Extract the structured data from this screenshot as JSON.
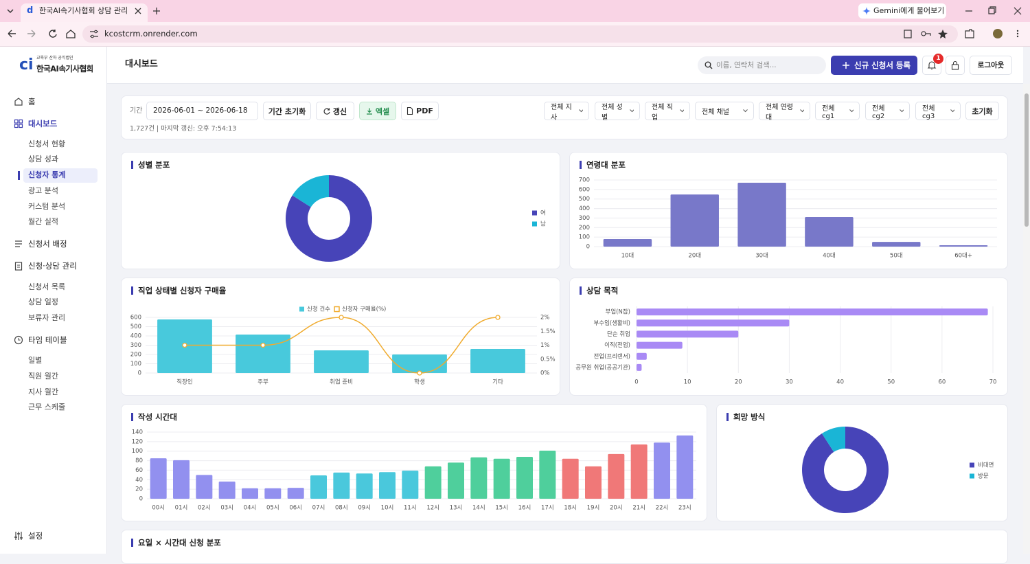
{
  "browser": {
    "tab_title": "한국AI속기사협회 상담 관리 시",
    "url": "kcostcrm.onrender.com",
    "gemini": "Gemini에게 물어보기"
  },
  "sidebar": {
    "logo_sub": "교육부 산하 공익법인",
    "logo_title": "한국AI속기사협회",
    "nav": [
      {
        "label": "홈"
      },
      {
        "label": "대시보드",
        "children": [
          "신청서 현황",
          "상담 성과",
          "신청자 통계",
          "광고 분석",
          "커스텀 분석",
          "월간 실적"
        ]
      },
      {
        "label": "신청서 배정"
      },
      {
        "label": "신청·상담 관리",
        "children": [
          "신청서 목록",
          "상담 일정",
          "보류자 관리"
        ]
      },
      {
        "label": "타임 테이블",
        "children": [
          "일별",
          "직원 월간",
          "지사 월간",
          "근무 스케줄"
        ]
      }
    ],
    "settings": "설정"
  },
  "header": {
    "title": "대시보드",
    "search_placeholder": "이름, 연락처 검색...",
    "register": "신규 신청서 등록",
    "notifications": "1",
    "logout": "로그아웃"
  },
  "filters": {
    "period_label": "기간",
    "period": "2026-06-01 ~ 2026-06-18",
    "reset_period": "기간 초기화",
    "refresh": "갱신",
    "excel": "엑셀",
    "pdf": "PDF",
    "dropdowns": [
      "전체 지사",
      "전체 성별",
      "전체 직업",
      "전체 채널",
      "전체 연령대",
      "전체 cg1",
      "전체 cg2",
      "전체 cg3"
    ],
    "reset": "초기화",
    "summary": "1,727건 | 마지막 갱신: 오후 7:54:13"
  },
  "chart_data": [
    {
      "type": "pie",
      "title": "성별 분포",
      "donut": true,
      "categories": [
        "여",
        "남"
      ],
      "values": [
        1450,
        277
      ],
      "colors": [
        "#4744b8",
        "#1ab5d6"
      ],
      "legend": "right"
    },
    {
      "type": "bar",
      "title": "연령대 분포",
      "categories": [
        "10대",
        "20대",
        "30대",
        "40대",
        "50대",
        "60대+"
      ],
      "values": [
        79,
        548,
        671,
        310,
        50,
        14
      ],
      "color": "#7878c9",
      "ylim": [
        0,
        700
      ],
      "yticks": [
        0,
        100,
        200,
        300,
        400,
        500,
        600,
        700
      ],
      "grid": true
    },
    {
      "type": "combo",
      "title": "직업 상태별 신청자 구매율",
      "categories": [
        "직장인",
        "주부",
        "취업 준비",
        "학생",
        "기타"
      ],
      "series": [
        {
          "name": "신청 건수",
          "type": "bar",
          "color": "#48c9dc",
          "values": [
            578,
            415,
            244,
            200,
            259
          ]
        },
        {
          "name": "신청자 구매율(%)",
          "type": "line",
          "axis": "y2",
          "color": "#f0ab2e",
          "values": [
            1,
            1,
            2,
            0,
            2
          ]
        }
      ],
      "ylim": [
        0,
        600
      ],
      "yticks": [
        0,
        100,
        200,
        300,
        400,
        500,
        600
      ],
      "y2lim": [
        0,
        2
      ],
      "y2ticks": [
        {
          "value": 0,
          "label": "0%"
        },
        {
          "value": 0.5,
          "label": "0.5%"
        },
        {
          "value": 1,
          "label": "1%"
        },
        {
          "value": 1.5,
          "label": "1.5%"
        },
        {
          "value": 2,
          "label": "2%"
        }
      ],
      "grid": true,
      "legend": "top"
    },
    {
      "type": "bar",
      "orientation": "horizontal",
      "title": "상담 목적",
      "categories": [
        "부업(N잡)",
        "부수입(생활비)",
        "단순 취업",
        "이직(전업)",
        "전업(프리랜서)",
        "공무원 취업(공공기관)"
      ],
      "values": [
        69,
        30,
        20,
        9,
        2,
        1
      ],
      "color": "#a98af5",
      "xlim": [
        0,
        70
      ],
      "xticks": [
        0,
        10,
        20,
        30,
        40,
        50,
        60,
        70
      ],
      "grid": true
    },
    {
      "type": "bar",
      "title": "작성 시간대",
      "categories": [
        "00시",
        "01시",
        "02시",
        "03시",
        "04시",
        "05시",
        "06시",
        "07시",
        "08시",
        "09시",
        "10시",
        "11시",
        "12시",
        "13시",
        "14시",
        "15시",
        "16시",
        "17시",
        "18시",
        "19시",
        "20시",
        "21시",
        "22시",
        "23시"
      ],
      "values": [
        85,
        81,
        50,
        36,
        22,
        22,
        23,
        49,
        55,
        53,
        56,
        59,
        68,
        76,
        87,
        84,
        88,
        101,
        84,
        68,
        94,
        114,
        118,
        133
      ],
      "colors": [
        "#9290ef",
        "#9290ef",
        "#9290ef",
        "#9290ef",
        "#9290ef",
        "#9290ef",
        "#9290ef",
        "#4ac8dc",
        "#4ac8dc",
        "#4ac8dc",
        "#4ac8dc",
        "#4ac8dc",
        "#4fcf9c",
        "#4fcf9c",
        "#4fcf9c",
        "#4fcf9c",
        "#4fcf9c",
        "#4fcf9c",
        "#f07878",
        "#f07878",
        "#f07878",
        "#f07878",
        "#9290ef",
        "#9290ef"
      ],
      "ylim": [
        0,
        140
      ],
      "yticks": [
        0,
        20,
        40,
        60,
        80,
        100,
        120,
        140
      ],
      "grid": true
    },
    {
      "type": "pie",
      "title": "희망 방식",
      "donut": true,
      "categories": [
        "비대면",
        "방문"
      ],
      "values": [
        1570,
        157
      ],
      "colors": [
        "#4744b8",
        "#1ab5d6"
      ],
      "legend": "right"
    }
  ],
  "bottom_card": {
    "title": "요일 × 시간대 신청 분포"
  }
}
